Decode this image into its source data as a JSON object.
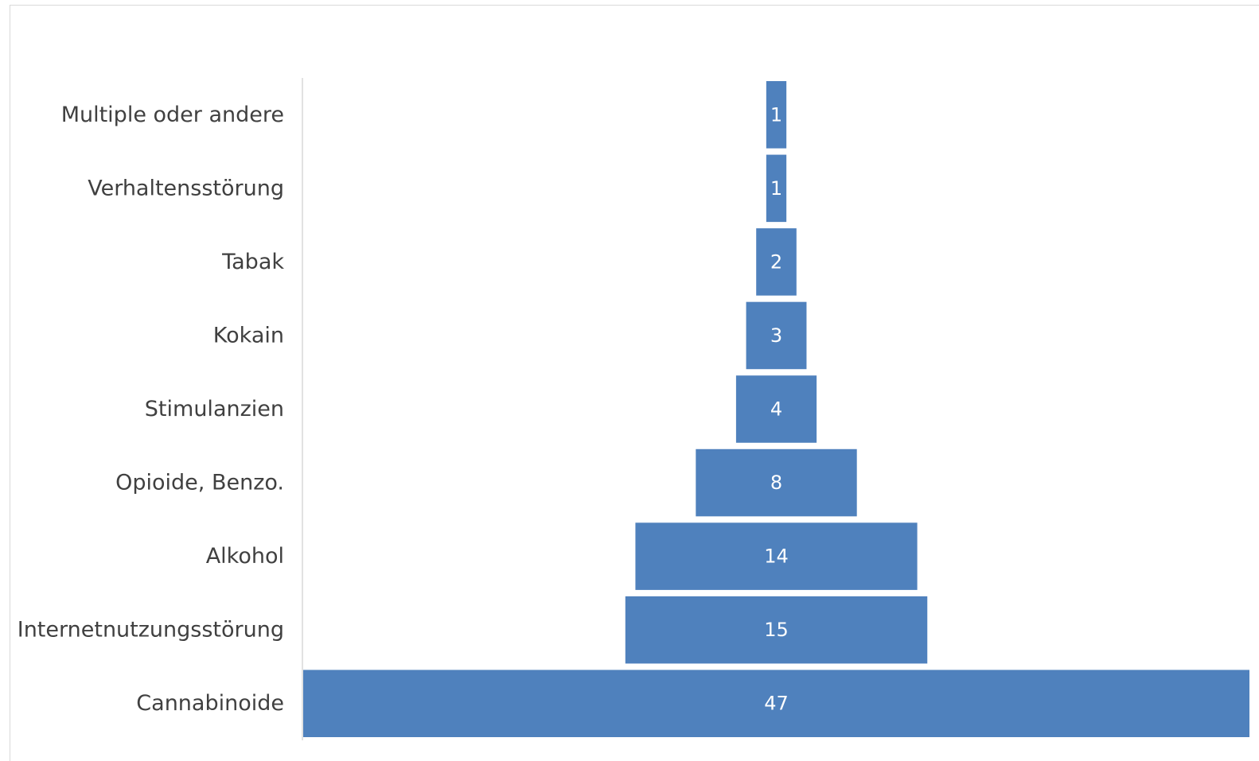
{
  "chart_data": {
    "type": "bar",
    "orientation": "horizontal",
    "style": "funnel",
    "categories": [
      "Multiple oder andere",
      "Verhaltensstörung",
      "Tabak",
      "Kokain",
      "Stimulanzien",
      "Opioide, Benzo.",
      "Alkohol",
      "Internetnutzungsstörung",
      "Cannabinoide"
    ],
    "values": [
      1,
      1,
      2,
      3,
      4,
      8,
      14,
      15,
      47
    ],
    "data_labels": [
      "1",
      "1",
      "2",
      "3",
      "4",
      "8",
      "14",
      "15",
      "47"
    ],
    "bar_color": "#4f81bd",
    "label_color": "#404040",
    "value_label_color": "#ffffff",
    "axis_color": "#d9d9d9",
    "grid": false,
    "legend": "none"
  }
}
